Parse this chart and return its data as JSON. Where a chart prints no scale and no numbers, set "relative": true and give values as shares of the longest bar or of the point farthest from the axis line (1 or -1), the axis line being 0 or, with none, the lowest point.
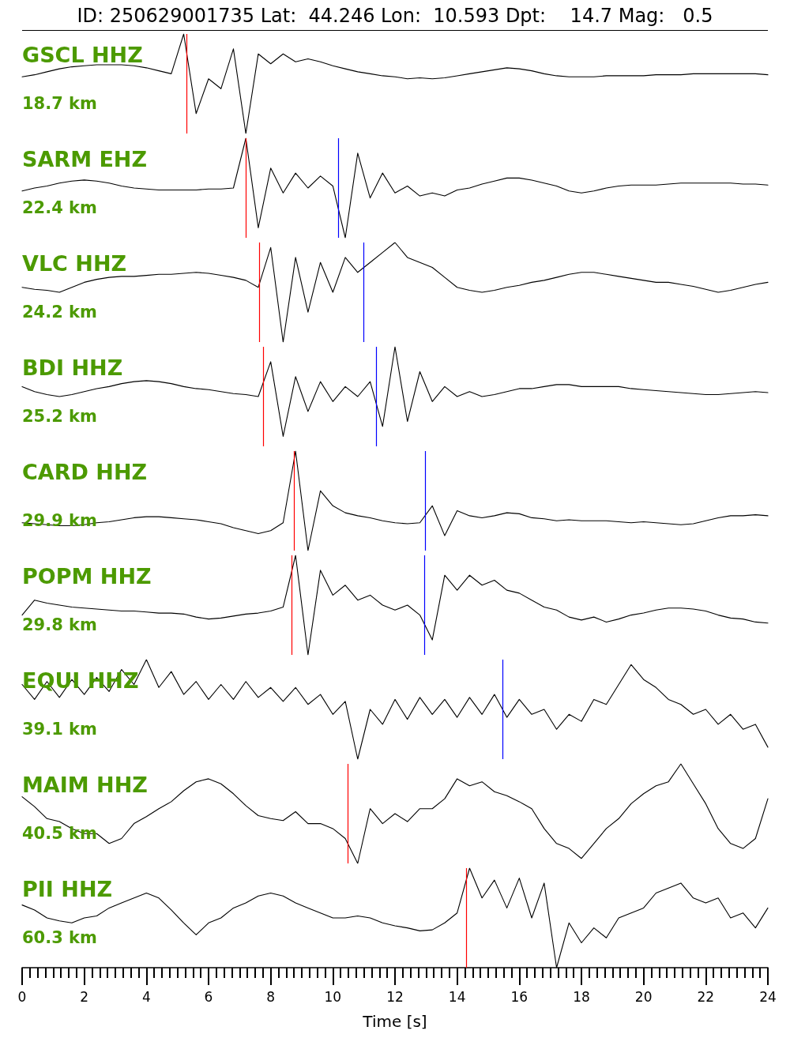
{
  "chart_data": [
    {
      "type": "line",
      "title": "ID: 250629001735 Lat:  44.246 Lon:  10.593 Dpt:    14.7 Mag:   0.5",
      "relative": true,
      "marker": "none",
      "color": "#000000",
      "xlim": [
        0,
        24
      ],
      "tick_labels": false,
      "annotations": [
        "GSCL HHZ",
        "18.7 km"
      ],
      "ref_lines": [
        {
          "axis": "x",
          "value": 5.29,
          "color": "#ff0000"
        }
      ],
      "x": [
        0,
        0.4,
        0.8,
        1.2,
        1.6,
        2,
        2.4,
        2.8,
        3.2,
        3.6,
        4,
        4.4,
        4.8,
        5.2,
        5.6,
        6,
        6.4,
        6.8,
        7.2,
        7.6,
        8,
        8.4,
        8.8,
        9.2,
        9.6,
        10,
        10.4,
        10.8,
        11.2,
        11.6,
        12,
        12.4,
        12.8,
        13.2,
        13.6,
        14,
        14.4,
        14.8,
        15.2,
        15.6,
        16,
        16.4,
        16.8,
        17.2,
        17.6,
        18,
        18.4,
        18.8,
        19.2,
        19.6,
        20,
        20.4,
        20.8,
        21.2,
        21.6,
        22,
        22.4,
        22.8,
        23.2,
        23.6,
        24
      ],
      "values": [
        0.57,
        0.59,
        0.62,
        0.65,
        0.67,
        0.68,
        0.69,
        0.69,
        0.69,
        0.68,
        0.66,
        0.63,
        0.6,
        1.0,
        0.2,
        0.55,
        0.45,
        0.85,
        0.0,
        0.8,
        0.7,
        0.8,
        0.72,
        0.75,
        0.72,
        0.68,
        0.65,
        0.62,
        0.6,
        0.58,
        0.57,
        0.55,
        0.56,
        0.55,
        0.56,
        0.58,
        0.6,
        0.62,
        0.64,
        0.66,
        0.65,
        0.63,
        0.6,
        0.58,
        0.57,
        0.57,
        0.57,
        0.58,
        0.58,
        0.58,
        0.58,
        0.59,
        0.59,
        0.59,
        0.6,
        0.6,
        0.6,
        0.6,
        0.6,
        0.6,
        0.59
      ]
    },
    {
      "type": "line",
      "relative": true,
      "marker": "none",
      "color": "#000000",
      "xlim": [
        0,
        24
      ],
      "tick_labels": false,
      "annotations": [
        "SARM EHZ",
        "22.4 km"
      ],
      "ref_lines": [
        {
          "axis": "x",
          "value": 7.2,
          "color": "#ff0000"
        },
        {
          "axis": "x",
          "value": 10.17,
          "color": "#0000ff"
        }
      ],
      "x": [
        0,
        0.4,
        0.8,
        1.2,
        1.6,
        2,
        2.4,
        2.8,
        3.2,
        3.6,
        4,
        4.4,
        4.8,
        5.2,
        5.6,
        6,
        6.4,
        6.8,
        7.2,
        7.6,
        8,
        8.4,
        8.8,
        9.2,
        9.6,
        10,
        10.4,
        10.8,
        11.2,
        11.6,
        12,
        12.4,
        12.8,
        13.2,
        13.6,
        14,
        14.4,
        14.8,
        15.2,
        15.6,
        16,
        16.4,
        16.8,
        17.2,
        17.6,
        18,
        18.4,
        18.8,
        19.2,
        19.6,
        20,
        20.4,
        20.8,
        21.2,
        21.6,
        22,
        22.4,
        22.8,
        23.2,
        23.6,
        24
      ],
      "values": [
        0.47,
        0.5,
        0.52,
        0.55,
        0.57,
        0.58,
        0.57,
        0.55,
        0.52,
        0.5,
        0.49,
        0.48,
        0.48,
        0.48,
        0.48,
        0.49,
        0.49,
        0.5,
        1.0,
        0.1,
        0.7,
        0.45,
        0.65,
        0.5,
        0.62,
        0.52,
        0.0,
        0.85,
        0.4,
        0.65,
        0.45,
        0.52,
        0.42,
        0.45,
        0.42,
        0.48,
        0.5,
        0.54,
        0.57,
        0.6,
        0.6,
        0.58,
        0.55,
        0.52,
        0.47,
        0.45,
        0.47,
        0.5,
        0.52,
        0.53,
        0.53,
        0.53,
        0.54,
        0.55,
        0.55,
        0.55,
        0.55,
        0.55,
        0.54,
        0.54,
        0.53
      ]
    },
    {
      "type": "line",
      "relative": true,
      "marker": "none",
      "color": "#000000",
      "xlim": [
        0,
        24
      ],
      "tick_labels": false,
      "annotations": [
        "VLC HHZ",
        "24.2 km"
      ],
      "ref_lines": [
        {
          "axis": "x",
          "value": 7.63,
          "color": "#ff0000"
        },
        {
          "axis": "x",
          "value": 10.98,
          "color": "#0000ff"
        }
      ],
      "x": [
        0,
        0.4,
        0.8,
        1.2,
        1.6,
        2,
        2.4,
        2.8,
        3.2,
        3.6,
        4,
        4.4,
        4.8,
        5.2,
        5.6,
        6,
        6.4,
        6.8,
        7.2,
        7.6,
        8,
        8.4,
        8.8,
        9.2,
        9.6,
        10,
        10.4,
        10.8,
        11.2,
        11.6,
        12,
        12.4,
        12.8,
        13.2,
        13.6,
        14,
        14.4,
        14.8,
        15.2,
        15.6,
        16,
        16.4,
        16.8,
        17.2,
        17.6,
        18,
        18.4,
        18.8,
        19.2,
        19.6,
        20,
        20.4,
        20.8,
        21.2,
        21.6,
        22,
        22.4,
        22.8,
        23.2,
        23.6,
        24
      ],
      "values": [
        0.55,
        0.53,
        0.52,
        0.5,
        0.55,
        0.6,
        0.63,
        0.65,
        0.66,
        0.66,
        0.67,
        0.68,
        0.68,
        0.69,
        0.7,
        0.69,
        0.67,
        0.65,
        0.62,
        0.55,
        0.95,
        0.0,
        0.85,
        0.3,
        0.8,
        0.5,
        0.85,
        0.7,
        0.8,
        0.9,
        1.0,
        0.85,
        0.8,
        0.75,
        0.65,
        0.55,
        0.52,
        0.5,
        0.52,
        0.55,
        0.57,
        0.6,
        0.62,
        0.65,
        0.68,
        0.7,
        0.7,
        0.68,
        0.66,
        0.64,
        0.62,
        0.6,
        0.6,
        0.58,
        0.56,
        0.53,
        0.5,
        0.52,
        0.55,
        0.58,
        0.6
      ]
    },
    {
      "type": "line",
      "relative": true,
      "marker": "none",
      "color": "#000000",
      "xlim": [
        0,
        24
      ],
      "tick_labels": false,
      "annotations": [
        "BDI HHZ",
        "25.2 km"
      ],
      "ref_lines": [
        {
          "axis": "x",
          "value": 7.75,
          "color": "#ff0000"
        },
        {
          "axis": "x",
          "value": 11.39,
          "color": "#0000ff"
        }
      ],
      "x": [
        0,
        0.4,
        0.8,
        1.2,
        1.6,
        2,
        2.4,
        2.8,
        3.2,
        3.6,
        4,
        4.4,
        4.8,
        5.2,
        5.6,
        6,
        6.4,
        6.8,
        7.2,
        7.6,
        8,
        8.4,
        8.8,
        9.2,
        9.6,
        10,
        10.4,
        10.8,
        11.2,
        11.6,
        12,
        12.4,
        12.8,
        13.2,
        13.6,
        14,
        14.4,
        14.8,
        15.2,
        15.6,
        16,
        16.4,
        16.8,
        17.2,
        17.6,
        18,
        18.4,
        18.8,
        19.2,
        19.6,
        20,
        20.4,
        20.8,
        21.2,
        21.6,
        22,
        22.4,
        22.8,
        23.2,
        23.6,
        24
      ],
      "values": [
        0.6,
        0.55,
        0.52,
        0.5,
        0.52,
        0.55,
        0.58,
        0.6,
        0.63,
        0.65,
        0.66,
        0.65,
        0.63,
        0.6,
        0.58,
        0.57,
        0.55,
        0.53,
        0.52,
        0.5,
        0.85,
        0.1,
        0.7,
        0.35,
        0.65,
        0.45,
        0.6,
        0.5,
        0.65,
        0.2,
        1.0,
        0.25,
        0.75,
        0.45,
        0.6,
        0.5,
        0.55,
        0.5,
        0.52,
        0.55,
        0.58,
        0.58,
        0.6,
        0.62,
        0.62,
        0.6,
        0.6,
        0.6,
        0.6,
        0.58,
        0.57,
        0.56,
        0.55,
        0.54,
        0.53,
        0.52,
        0.52,
        0.53,
        0.54,
        0.55,
        0.54
      ]
    },
    {
      "type": "line",
      "relative": true,
      "marker": "none",
      "color": "#000000",
      "xlim": [
        0,
        24
      ],
      "tick_labels": false,
      "annotations": [
        "CARD HHZ",
        "29.9 km"
      ],
      "ref_lines": [
        {
          "axis": "x",
          "value": 8.75,
          "color": "#ff0000"
        },
        {
          "axis": "x",
          "value": 12.97,
          "color": "#0000ff"
        }
      ],
      "x": [
        0,
        0.4,
        0.8,
        1.2,
        1.6,
        2,
        2.4,
        2.8,
        3.2,
        3.6,
        4,
        4.4,
        4.8,
        5.2,
        5.6,
        6,
        6.4,
        6.8,
        7.2,
        7.6,
        8,
        8.4,
        8.8,
        9.2,
        9.6,
        10,
        10.4,
        10.8,
        11.2,
        11.6,
        12,
        12.4,
        12.8,
        13.2,
        13.6,
        14,
        14.4,
        14.8,
        15.2,
        15.6,
        16,
        16.4,
        16.8,
        17.2,
        17.6,
        18,
        18.4,
        18.8,
        19.2,
        19.6,
        20,
        20.4,
        20.8,
        21.2,
        21.6,
        22,
        22.4,
        22.8,
        23.2,
        23.6,
        24
      ],
      "values": [
        0.28,
        0.27,
        0.26,
        0.25,
        0.25,
        0.26,
        0.28,
        0.29,
        0.31,
        0.33,
        0.34,
        0.34,
        0.33,
        0.32,
        0.31,
        0.29,
        0.27,
        0.23,
        0.2,
        0.17,
        0.2,
        0.28,
        1.0,
        0.0,
        0.6,
        0.45,
        0.38,
        0.35,
        0.33,
        0.3,
        0.28,
        0.27,
        0.28,
        0.45,
        0.15,
        0.4,
        0.35,
        0.33,
        0.35,
        0.38,
        0.37,
        0.33,
        0.32,
        0.3,
        0.31,
        0.3,
        0.3,
        0.3,
        0.29,
        0.28,
        0.29,
        0.28,
        0.27,
        0.26,
        0.27,
        0.3,
        0.33,
        0.35,
        0.35,
        0.36,
        0.35
      ]
    },
    {
      "type": "line",
      "relative": true,
      "marker": "none",
      "color": "#000000",
      "xlim": [
        0,
        24
      ],
      "tick_labels": false,
      "annotations": [
        "POPM HHZ",
        "29.8 km"
      ],
      "ref_lines": [
        {
          "axis": "x",
          "value": 8.67,
          "color": "#ff0000"
        },
        {
          "axis": "x",
          "value": 12.94,
          "color": "#0000ff"
        }
      ],
      "x": [
        0,
        0.4,
        0.8,
        1.2,
        1.6,
        2,
        2.4,
        2.8,
        3.2,
        3.6,
        4,
        4.4,
        4.8,
        5.2,
        5.6,
        6,
        6.4,
        6.8,
        7.2,
        7.6,
        8,
        8.4,
        8.8,
        9.2,
        9.6,
        10,
        10.4,
        10.8,
        11.2,
        11.6,
        12,
        12.4,
        12.8,
        13.2,
        13.6,
        14,
        14.4,
        14.8,
        15.2,
        15.6,
        16,
        16.4,
        16.8,
        17.2,
        17.6,
        18,
        18.4,
        18.8,
        19.2,
        19.6,
        20,
        20.4,
        20.8,
        21.2,
        21.6,
        22,
        22.4,
        22.8,
        23.2,
        23.6,
        24
      ],
      "values": [
        0.4,
        0.55,
        0.52,
        0.5,
        0.48,
        0.47,
        0.46,
        0.45,
        0.44,
        0.44,
        0.43,
        0.42,
        0.42,
        0.41,
        0.38,
        0.36,
        0.37,
        0.39,
        0.41,
        0.42,
        0.44,
        0.48,
        1.0,
        0.0,
        0.85,
        0.6,
        0.7,
        0.55,
        0.6,
        0.5,
        0.45,
        0.5,
        0.4,
        0.15,
        0.8,
        0.65,
        0.8,
        0.7,
        0.75,
        0.65,
        0.62,
        0.55,
        0.48,
        0.45,
        0.38,
        0.35,
        0.38,
        0.33,
        0.36,
        0.4,
        0.42,
        0.45,
        0.47,
        0.47,
        0.46,
        0.44,
        0.4,
        0.37,
        0.36,
        0.33,
        0.32
      ]
    },
    {
      "type": "line",
      "relative": true,
      "marker": "none",
      "color": "#000000",
      "xlim": [
        0,
        24
      ],
      "tick_labels": false,
      "annotations": [
        "EQUI HHZ",
        "39.1 km"
      ],
      "ref_lines": [
        {
          "axis": "x",
          "value": 15.46,
          "color": "#0000ff"
        }
      ],
      "x": [
        0,
        0.4,
        0.8,
        1.2,
        1.6,
        2,
        2.4,
        2.8,
        3.2,
        3.6,
        4,
        4.4,
        4.8,
        5.2,
        5.6,
        6,
        6.4,
        6.8,
        7.2,
        7.6,
        8,
        8.4,
        8.8,
        9.2,
        9.6,
        10,
        10.4,
        10.8,
        11.2,
        11.6,
        12,
        12.4,
        12.8,
        13.2,
        13.6,
        14,
        14.4,
        14.8,
        15.2,
        15.6,
        16,
        16.4,
        16.8,
        17.2,
        17.6,
        18,
        18.4,
        18.8,
        19.2,
        19.6,
        20,
        20.4,
        20.8,
        21.2,
        21.6,
        22,
        22.4,
        22.8,
        23.2,
        23.6,
        24
      ],
      "values": [
        0.75,
        0.6,
        0.78,
        0.62,
        0.8,
        0.65,
        0.82,
        0.68,
        0.9,
        0.75,
        1.0,
        0.72,
        0.88,
        0.65,
        0.78,
        0.6,
        0.75,
        0.6,
        0.78,
        0.62,
        0.72,
        0.58,
        0.72,
        0.55,
        0.65,
        0.45,
        0.58,
        0.0,
        0.5,
        0.35,
        0.6,
        0.4,
        0.62,
        0.45,
        0.6,
        0.42,
        0.62,
        0.45,
        0.65,
        0.42,
        0.6,
        0.45,
        0.5,
        0.3,
        0.45,
        0.38,
        0.6,
        0.55,
        0.75,
        0.95,
        0.8,
        0.72,
        0.6,
        0.55,
        0.45,
        0.5,
        0.35,
        0.45,
        0.3,
        0.35,
        0.12
      ]
    },
    {
      "type": "line",
      "relative": true,
      "marker": "none",
      "color": "#000000",
      "xlim": [
        0,
        24
      ],
      "tick_labels": false,
      "annotations": [
        "MAIM HHZ",
        "40.5 km"
      ],
      "ref_lines": [
        {
          "axis": "x",
          "value": 10.48,
          "color": "#ff0000"
        }
      ],
      "x": [
        0,
        0.4,
        0.8,
        1.2,
        1.6,
        2,
        2.4,
        2.8,
        3.2,
        3.6,
        4,
        4.4,
        4.8,
        5.2,
        5.6,
        6,
        6.4,
        6.8,
        7.2,
        7.6,
        8,
        8.4,
        8.8,
        9.2,
        9.6,
        10,
        10.4,
        10.8,
        11.2,
        11.6,
        12,
        12.4,
        12.8,
        13.2,
        13.6,
        14,
        14.4,
        14.8,
        15.2,
        15.6,
        16,
        16.4,
        16.8,
        17.2,
        17.6,
        18,
        18.4,
        18.8,
        19.2,
        19.6,
        20,
        20.4,
        20.8,
        21.2,
        21.6,
        22,
        22.4,
        22.8,
        23.2,
        23.6,
        24
      ],
      "values": [
        0.67,
        0.57,
        0.45,
        0.42,
        0.35,
        0.3,
        0.3,
        0.2,
        0.25,
        0.4,
        0.47,
        0.55,
        0.62,
        0.73,
        0.82,
        0.85,
        0.8,
        0.7,
        0.58,
        0.48,
        0.45,
        0.43,
        0.52,
        0.4,
        0.4,
        0.35,
        0.25,
        0.0,
        0.55,
        0.4,
        0.5,
        0.42,
        0.55,
        0.55,
        0.65,
        0.85,
        0.78,
        0.82,
        0.72,
        0.68,
        0.62,
        0.55,
        0.35,
        0.2,
        0.15,
        0.05,
        0.2,
        0.35,
        0.45,
        0.6,
        0.7,
        0.78,
        0.82,
        1.0,
        0.8,
        0.6,
        0.35,
        0.2,
        0.15,
        0.25,
        0.65
      ]
    },
    {
      "type": "line",
      "relative": true,
      "marker": "none",
      "color": "#000000",
      "xlim": [
        0,
        24
      ],
      "tick_labels": "x",
      "xlabel": "Time [s]",
      "annotations": [
        "PII HHZ",
        "60.3 km"
      ],
      "ref_lines": [
        {
          "axis": "x",
          "value": 14.29,
          "color": "#ff0000"
        }
      ],
      "xticks": [
        0,
        {
          "value": 0.25,
          "label": null
        },
        {
          "value": 0.5,
          "label": null
        },
        {
          "value": 0.75,
          "label": null
        },
        {
          "value": 1,
          "label": null
        },
        {
          "value": 1.25,
          "label": null
        },
        {
          "value": 1.5,
          "label": null
        },
        {
          "value": 1.75,
          "label": null
        },
        2,
        {
          "value": 2.25,
          "label": null
        },
        {
          "value": 2.5,
          "label": null
        },
        {
          "value": 2.75,
          "label": null
        },
        {
          "value": 3,
          "label": null
        },
        {
          "value": 3.25,
          "label": null
        },
        {
          "value": 3.5,
          "label": null
        },
        {
          "value": 3.75,
          "label": null
        },
        4,
        {
          "value": 4.25,
          "label": null
        },
        {
          "value": 4.5,
          "label": null
        },
        {
          "value": 4.75,
          "label": null
        },
        {
          "value": 5,
          "label": null
        },
        {
          "value": 5.25,
          "label": null
        },
        {
          "value": 5.5,
          "label": null
        },
        {
          "value": 5.75,
          "label": null
        },
        6,
        {
          "value": 6.25,
          "label": null
        },
        {
          "value": 6.5,
          "label": null
        },
        {
          "value": 6.75,
          "label": null
        },
        {
          "value": 7,
          "label": null
        },
        {
          "value": 7.25,
          "label": null
        },
        {
          "value": 7.5,
          "label": null
        },
        {
          "value": 7.75,
          "label": null
        },
        8,
        {
          "value": 8.25,
          "label": null
        },
        {
          "value": 8.5,
          "label": null
        },
        {
          "value": 8.75,
          "label": null
        },
        {
          "value": 9,
          "label": null
        },
        {
          "value": 9.25,
          "label": null
        },
        {
          "value": 9.5,
          "label": null
        },
        {
          "value": 9.75,
          "label": null
        },
        10,
        {
          "value": 10.25,
          "label": null
        },
        {
          "value": 10.5,
          "label": null
        },
        {
          "value": 10.75,
          "label": null
        },
        {
          "value": 11,
          "label": null
        },
        {
          "value": 11.25,
          "label": null
        },
        {
          "value": 11.5,
          "label": null
        },
        {
          "value": 11.75,
          "label": null
        },
        12,
        {
          "value": 12.25,
          "label": null
        },
        {
          "value": 12.5,
          "label": null
        },
        {
          "value": 12.75,
          "label": null
        },
        {
          "value": 13,
          "label": null
        },
        {
          "value": 13.25,
          "label": null
        },
        {
          "value": 13.5,
          "label": null
        },
        {
          "value": 13.75,
          "label": null
        },
        14,
        {
          "value": 14.25,
          "label": null
        },
        {
          "value": 14.5,
          "label": null
        },
        {
          "value": 14.75,
          "label": null
        },
        {
          "value": 15,
          "label": null
        },
        {
          "value": 15.25,
          "label": null
        },
        {
          "value": 15.5,
          "label": null
        },
        {
          "value": 15.75,
          "label": null
        },
        16,
        {
          "value": 16.25,
          "label": null
        },
        {
          "value": 16.5,
          "label": null
        },
        {
          "value": 16.75,
          "label": null
        },
        {
          "value": 17,
          "label": null
        },
        {
          "value": 17.25,
          "label": null
        },
        {
          "value": 17.5,
          "label": null
        },
        {
          "value": 17.75,
          "label": null
        },
        18,
        {
          "value": 18.25,
          "label": null
        },
        {
          "value": 18.5,
          "label": null
        },
        {
          "value": 18.75,
          "label": null
        },
        {
          "value": 19,
          "label": null
        },
        {
          "value": 19.25,
          "label": null
        },
        {
          "value": 19.5,
          "label": null
        },
        {
          "value": 19.75,
          "label": null
        },
        20,
        {
          "value": 20.25,
          "label": null
        },
        {
          "value": 20.5,
          "label": null
        },
        {
          "value": 20.75,
          "label": null
        },
        {
          "value": 21,
          "label": null
        },
        {
          "value": 21.25,
          "label": null
        },
        {
          "value": 21.5,
          "label": null
        },
        {
          "value": 21.75,
          "label": null
        },
        22,
        {
          "value": 22.25,
          "label": null
        },
        {
          "value": 22.5,
          "label": null
        },
        {
          "value": 22.75,
          "label": null
        },
        {
          "value": 23,
          "label": null
        },
        {
          "value": 23.25,
          "label": null
        },
        {
          "value": 23.5,
          "label": null
        },
        {
          "value": 23.75,
          "label": null
        },
        24
      ],
      "x": [
        0,
        0.4,
        0.8,
        1.2,
        1.6,
        2,
        2.4,
        2.8,
        3.2,
        3.6,
        4,
        4.4,
        4.8,
        5.2,
        5.6,
        6,
        6.4,
        6.8,
        7.2,
        7.6,
        8,
        8.4,
        8.8,
        9.2,
        9.6,
        10,
        10.4,
        10.8,
        11.2,
        11.6,
        12,
        12.4,
        12.8,
        13.2,
        13.6,
        14,
        14.4,
        14.8,
        15.2,
        15.6,
        16,
        16.4,
        16.8,
        17.2,
        17.6,
        18,
        18.4,
        18.8,
        19.2,
        19.6,
        20,
        20.4,
        20.8,
        21.2,
        21.6,
        22,
        22.4,
        22.8,
        23.2,
        23.6,
        24
      ],
      "values": [
        0.63,
        0.58,
        0.5,
        0.47,
        0.45,
        0.5,
        0.52,
        0.6,
        0.65,
        0.7,
        0.75,
        0.7,
        0.58,
        0.45,
        0.33,
        0.45,
        0.5,
        0.6,
        0.65,
        0.72,
        0.75,
        0.72,
        0.65,
        0.6,
        0.55,
        0.5,
        0.5,
        0.52,
        0.5,
        0.45,
        0.42,
        0.4,
        0.37,
        0.38,
        0.45,
        0.55,
        1.0,
        0.7,
        0.88,
        0.6,
        0.9,
        0.5,
        0.85,
        0.0,
        0.45,
        0.25,
        0.4,
        0.3,
        0.5,
        0.55,
        0.6,
        0.75,
        0.8,
        0.85,
        0.7,
        0.65,
        0.7,
        0.5,
        0.55,
        0.4,
        0.6
      ]
    }
  ]
}
